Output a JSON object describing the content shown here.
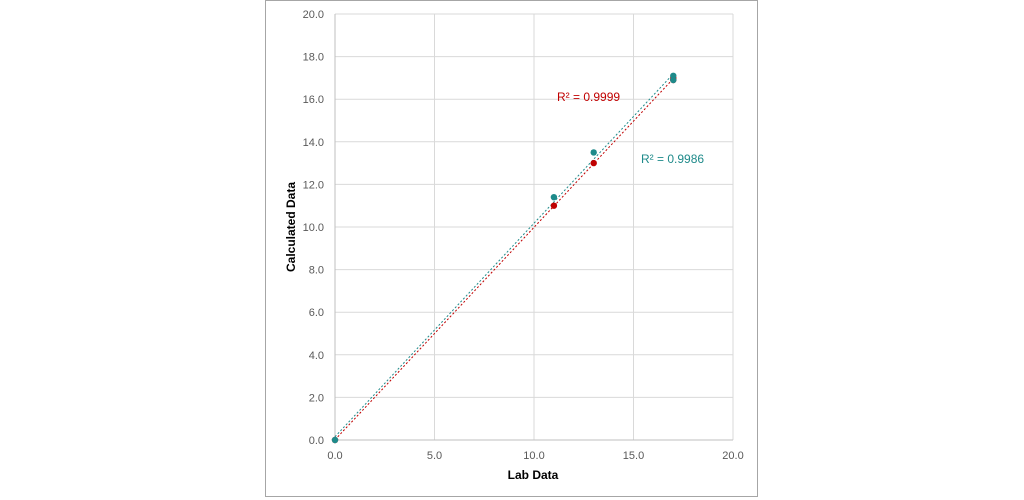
{
  "chart_data": {
    "type": "scatter",
    "title": "",
    "xlabel": "Lab Data",
    "ylabel": "Calculated Data",
    "xlim": [
      0,
      20
    ],
    "ylim": [
      0,
      20
    ],
    "x_ticks": [
      "0.0",
      "5.0",
      "10.0",
      "15.0",
      "20.0"
    ],
    "y_ticks": [
      "0.0",
      "2.0",
      "4.0",
      "6.0",
      "8.0",
      "10.0",
      "12.0",
      "14.0",
      "16.0",
      "18.0",
      "20.0"
    ],
    "grid": true,
    "legend": "none",
    "series": [
      {
        "color": "#c00000",
        "trendline": "dotted",
        "r2_label": "R² = 0.9999",
        "points": [
          [
            0,
            0
          ],
          [
            11,
            11.0
          ],
          [
            13,
            13.0
          ],
          [
            17,
            16.9
          ],
          [
            17,
            17.0
          ]
        ]
      },
      {
        "color": "#1e8a8a",
        "trendline": "dotted",
        "r2_label": "R² = 0.9986",
        "points": [
          [
            0,
            0
          ],
          [
            11,
            11.4
          ],
          [
            13,
            13.5
          ],
          [
            17,
            16.9
          ],
          [
            17,
            17.1
          ]
        ]
      }
    ]
  }
}
